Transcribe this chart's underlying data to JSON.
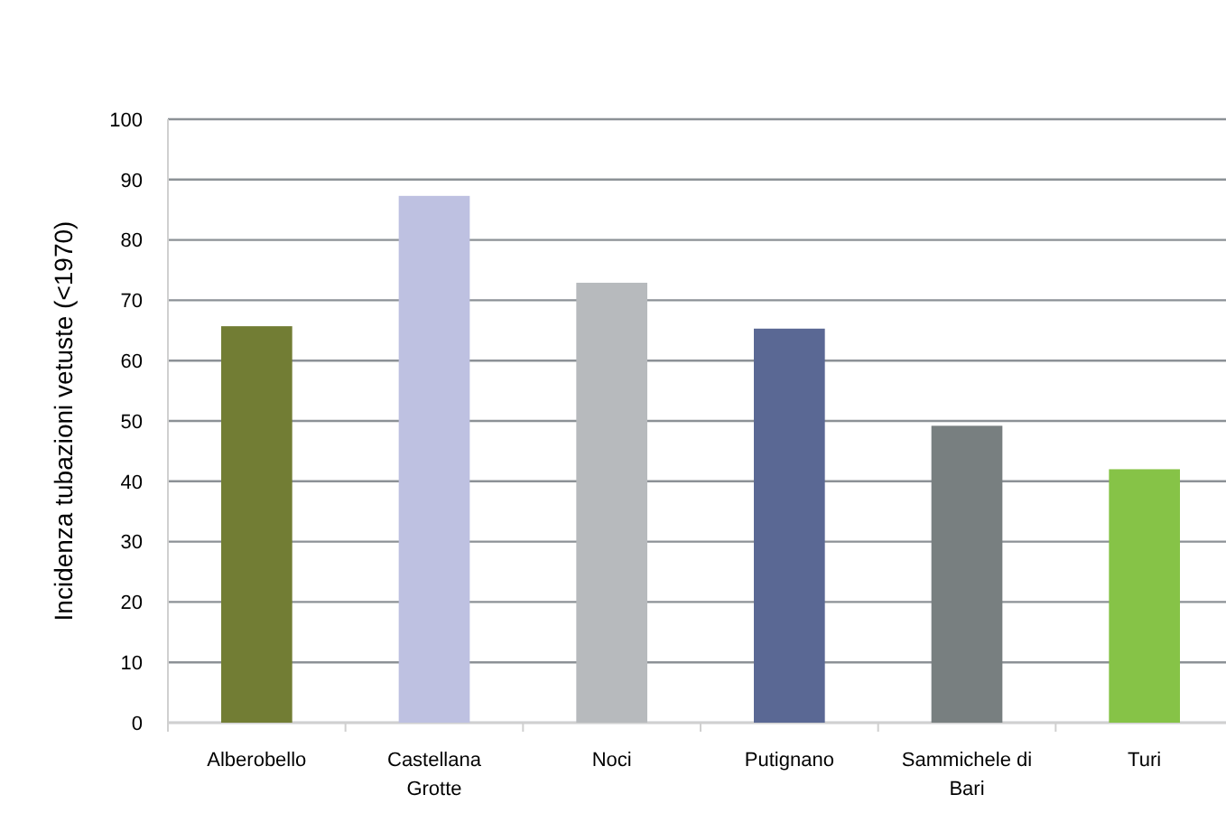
{
  "chart_data": {
    "type": "bar",
    "ylabel": "Incidenza tubazioni vetuste (<1970)",
    "categories": [
      "Alberobello",
      "Castellana Grotte",
      "Noci",
      "Putignano",
      "Sammichele di Bari",
      "Turi"
    ],
    "values": [
      65.7,
      87.3,
      72.9,
      65.3,
      49.2,
      42.0
    ],
    "colors": [
      "#727d34",
      "#bec1e1",
      "#b7babd",
      "#5a6894",
      "#787f80",
      "#86c347"
    ],
    "ylim": [
      0,
      100
    ],
    "yticks": [
      0,
      10,
      20,
      30,
      40,
      50,
      60,
      70,
      80,
      90,
      100
    ],
    "grid": "y"
  }
}
